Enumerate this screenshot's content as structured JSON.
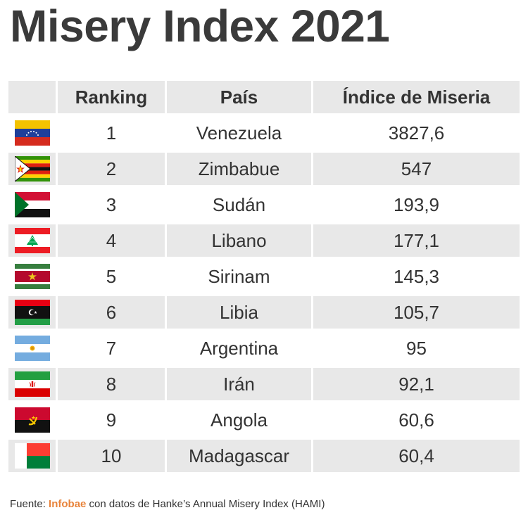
{
  "title": "Misery Index 2021",
  "colors": {
    "header_bg": "#e8e8e8",
    "stripe_bg": "#e8e8e8",
    "brand_orange": "#e8833a",
    "text": "#333333"
  },
  "chart_data": {
    "type": "table",
    "title": "Misery Index 2021",
    "columns": [
      "",
      "Ranking",
      "País",
      "Índice de Miseria"
    ],
    "rows": [
      {
        "flag": "venezuela-flag-icon",
        "rank": "1",
        "country": "Venezuela",
        "index": "3827,6"
      },
      {
        "flag": "zimbabwe-flag-icon",
        "rank": "2",
        "country": "Zimbabue",
        "index": "547"
      },
      {
        "flag": "sudan-flag-icon",
        "rank": "3",
        "country": "Sudán",
        "index": "193,9"
      },
      {
        "flag": "lebanon-flag-icon",
        "rank": "4",
        "country": "Libano",
        "index": "177,1"
      },
      {
        "flag": "suriname-flag-icon",
        "rank": "5",
        "country": "Sirinam",
        "index": "145,3"
      },
      {
        "flag": "libya-flag-icon",
        "rank": "6",
        "country": "Libia",
        "index": "105,7"
      },
      {
        "flag": "argentina-flag-icon",
        "rank": "7",
        "country": "Argentina",
        "index": "95"
      },
      {
        "flag": "iran-flag-icon",
        "rank": "8",
        "country": "Irán",
        "index": "92,1"
      },
      {
        "flag": "angola-flag-icon",
        "rank": "9",
        "country": "Angola",
        "index": "60,6"
      },
      {
        "flag": "madagascar-flag-icon",
        "rank": "10",
        "country": "Madagascar",
        "index": "60,4"
      }
    ]
  },
  "source": {
    "prefix": "Fuente: ",
    "brand": "Infobae",
    "suffix": " con datos de Hanke’s Annual Misery Index (HAMI)"
  }
}
